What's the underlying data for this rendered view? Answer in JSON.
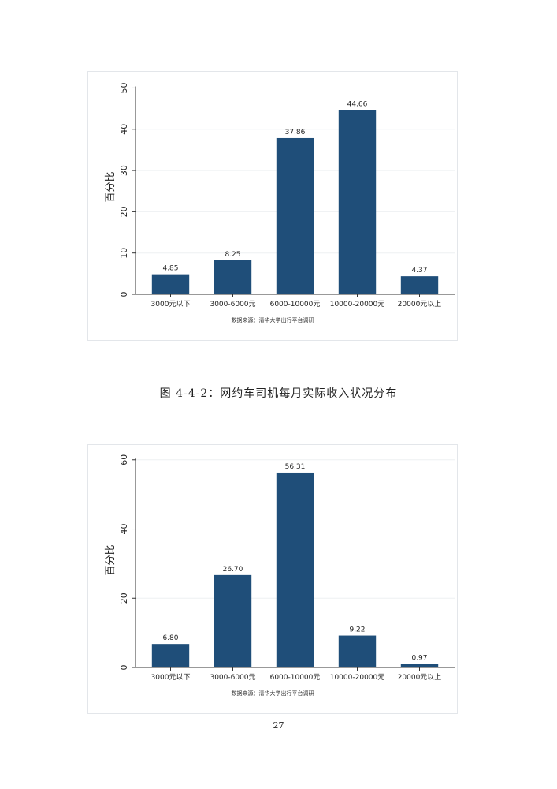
{
  "chart_data": [
    {
      "type": "bar",
      "categories": [
        "3000元以下",
        "3000-6000元",
        "6000-10000元",
        "10000-20000元",
        "20000元以上"
      ],
      "values": [
        4.85,
        8.25,
        37.86,
        44.66,
        4.37
      ],
      "value_labels": [
        "4.85",
        "8.25",
        "37.86",
        "44.66",
        "4.37"
      ],
      "ylabel": "百分比",
      "yticks": [
        0,
        10,
        20,
        30,
        40,
        50
      ],
      "ylim": [
        0,
        52
      ],
      "grid": true,
      "bar_color": "#1f4e79",
      "source": "数据来源：清华大学出行平台调研"
    },
    {
      "type": "bar",
      "categories": [
        "3000元以下",
        "3000-6000元",
        "6000-10000元",
        "10000-20000元",
        "20000元以上"
      ],
      "values": [
        6.8,
        26.7,
        56.31,
        9.22,
        0.97
      ],
      "value_labels": [
        "6.80",
        "26.70",
        "56.31",
        "9.22",
        "0.97"
      ],
      "ylabel": "百分比",
      "yticks": [
        0,
        20,
        40,
        60
      ],
      "ylim": [
        0,
        62
      ],
      "grid": true,
      "bar_color": "#1f4e79",
      "source": "数据来源：清华大学出行平台调研"
    }
  ],
  "caption": "图 4-4-2：网约车司机每月实际收入状况分布",
  "page_number": "27"
}
